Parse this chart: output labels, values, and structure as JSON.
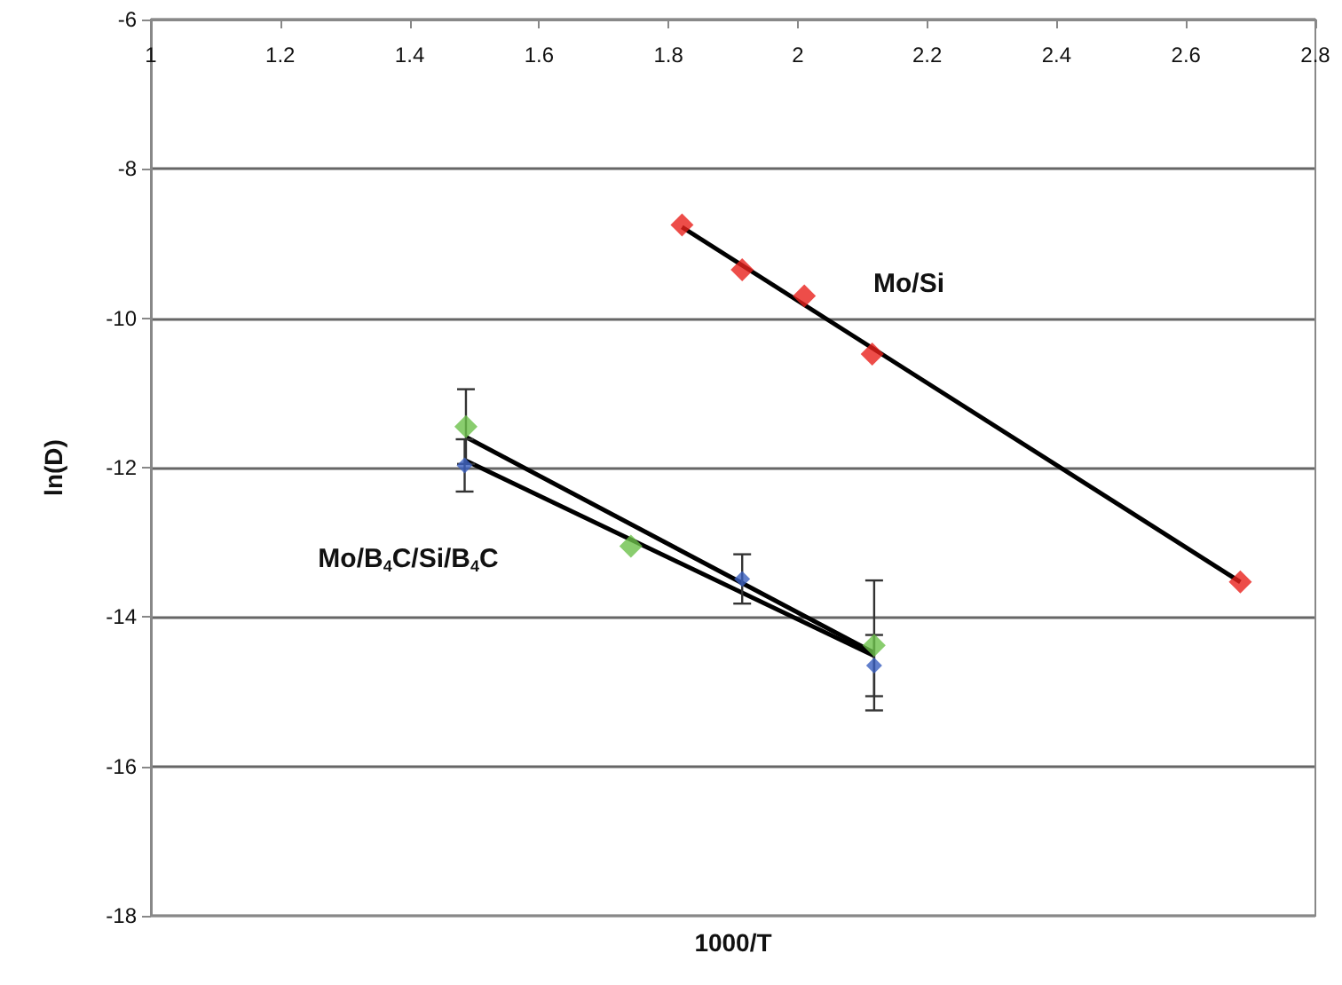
{
  "chart_data": {
    "type": "scatter",
    "xlabel": "1000/T",
    "ylabel": "ln(D)",
    "xlim": [
      1,
      2.8
    ],
    "xticks": [
      1,
      1.2,
      1.4,
      1.6,
      1.8,
      2,
      2.2,
      2.4,
      2.6,
      2.8
    ],
    "ylim": [
      -18,
      -6
    ],
    "yticks": [
      -18,
      -16,
      -14,
      -12,
      -10,
      -8,
      -6
    ],
    "grid": "y",
    "marker": "diamond",
    "series": [
      {
        "color": "#e8201c",
        "x": [
          1.821,
          1.914,
          2.01,
          2.115,
          2.684
        ],
        "values": [
          -8.75,
          -9.35,
          -9.7,
          -10.48,
          -13.53
        ]
      },
      {
        "color": "#6cc04a",
        "x": [
          1.487,
          1.742,
          2.118
        ],
        "values": [
          -11.45,
          -13.05,
          -14.38
        ],
        "errors": [
          0.5,
          null,
          0.87
        ]
      },
      {
        "color": "#3a5fbf",
        "x": [
          1.485,
          1.914,
          2.118
        ],
        "values": [
          -11.97,
          -13.49,
          -14.65
        ],
        "errors": [
          0.35,
          0.33,
          0.41
        ]
      },
      {
        "type": "line",
        "color": "#000000",
        "marker": "none",
        "x": [
          1.821,
          2.684
        ],
        "values": [
          -8.78,
          -13.53
        ]
      },
      {
        "type": "line",
        "color": "#000000",
        "marker": "none",
        "x": [
          1.487,
          2.118
        ],
        "values": [
          -11.59,
          -14.48
        ]
      },
      {
        "type": "line",
        "color": "#000000",
        "marker": "none",
        "x": [
          1.485,
          2.118
        ],
        "values": [
          -11.9,
          -14.52
        ]
      }
    ],
    "annotations": [
      "Mo/Si",
      "Mo/B$_{4}$C/Si/B$_{4}$C"
    ]
  }
}
